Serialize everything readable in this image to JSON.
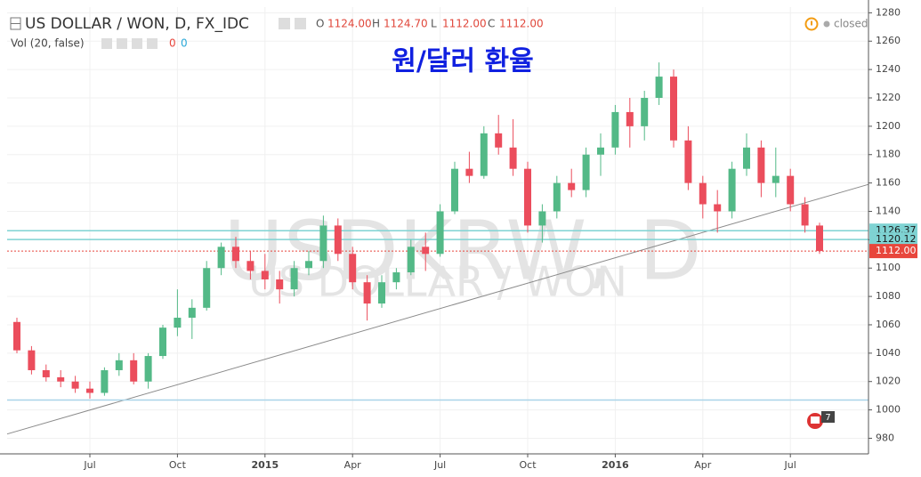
{
  "chart_data": {
    "type": "candlestick",
    "title": "원/달러 환율",
    "symbol": "US DOLLAR / WON, D, FX_IDC",
    "ohlc_legend": {
      "names": [
        "O",
        "H",
        "L",
        "C"
      ],
      "values": [
        1124,
        1124.7,
        1112,
        1112
      ],
      "value_labels": [
        "1124.00",
        "1124.70",
        "1112.00",
        "1112.00"
      ]
    },
    "volume_legend": {
      "name": "Vol (20, false)",
      "values": [
        0,
        0
      ]
    },
    "status": "closed",
    "watermark": {
      "symbol": "USDKRW, D",
      "description": "US DOLLAR / WON"
    },
    "badge": "7",
    "categories": [
      null,
      null,
      null,
      null,
      null,
      "Jul",
      null,
      null,
      null,
      null,
      null,
      "Oct",
      null,
      null,
      null,
      null,
      null,
      "2015",
      null,
      null,
      null,
      null,
      null,
      "Apr",
      null,
      null,
      null,
      null,
      null,
      "Jul",
      null,
      null,
      null,
      null,
      null,
      "Oct",
      null,
      null,
      null,
      null,
      null,
      "2016",
      null,
      null,
      null,
      null,
      null,
      "Apr",
      null,
      null,
      null,
      null,
      null,
      "Jul",
      null,
      null
    ],
    "open": [
      1062,
      1042,
      1028,
      1023,
      1020,
      1015,
      1012,
      1028,
      1035,
      1020,
      1038,
      1058,
      1065,
      1072,
      1100,
      1115,
      1105,
      1098,
      1092,
      1085,
      1100,
      1105,
      1130,
      1110,
      1090,
      1075,
      1090,
      1097,
      1115,
      1110,
      1140,
      1170,
      1165,
      1195,
      1185,
      1170,
      1130,
      1140,
      1160,
      1155,
      1180,
      1185,
      1210,
      1200,
      1220,
      1235,
      1190,
      1160,
      1145,
      1140,
      1170,
      1185,
      1160,
      1165,
      1145,
      1130
    ],
    "high": [
      1065,
      1045,
      1032,
      1028,
      1024,
      1020,
      1030,
      1040,
      1040,
      1040,
      1060,
      1085,
      1078,
      1105,
      1118,
      1122,
      1112,
      1110,
      1098,
      1105,
      1112,
      1137,
      1135,
      1115,
      1095,
      1095,
      1100,
      1120,
      1125,
      1145,
      1175,
      1182,
      1200,
      1208,
      1205,
      1175,
      1145,
      1165,
      1170,
      1185,
      1195,
      1215,
      1220,
      1225,
      1245,
      1240,
      1200,
      1165,
      1155,
      1175,
      1195,
      1190,
      1185,
      1170,
      1150,
      1132
    ],
    "low": [
      1040,
      1025,
      1020,
      1016,
      1012,
      1008,
      1010,
      1024,
      1018,
      1015,
      1036,
      1052,
      1050,
      1070,
      1095,
      1100,
      1092,
      1085,
      1075,
      1080,
      1095,
      1100,
      1105,
      1085,
      1063,
      1072,
      1085,
      1095,
      1098,
      1108,
      1138,
      1160,
      1163,
      1180,
      1165,
      1125,
      1118,
      1135,
      1150,
      1150,
      1165,
      1180,
      1185,
      1190,
      1215,
      1185,
      1155,
      1135,
      1125,
      1135,
      1165,
      1150,
      1150,
      1140,
      1125,
      1110
    ],
    "close": [
      1042,
      1028,
      1023,
      1020,
      1015,
      1012,
      1028,
      1035,
      1020,
      1038,
      1058,
      1065,
      1072,
      1100,
      1115,
      1105,
      1098,
      1092,
      1085,
      1100,
      1105,
      1130,
      1110,
      1090,
      1075,
      1090,
      1097,
      1115,
      1110,
      1140,
      1170,
      1165,
      1195,
      1185,
      1170,
      1130,
      1140,
      1160,
      1155,
      1180,
      1185,
      1210,
      1200,
      1220,
      1235,
      1190,
      1160,
      1145,
      1140,
      1170,
      1185,
      1160,
      1165,
      1145,
      1130,
      1112
    ],
    "up_color": "#53b987",
    "down_color": "#eb4d5c",
    "ylim": [
      969,
      1284
    ],
    "yticks": [
      980,
      1000,
      1020,
      1040,
      1060,
      1080,
      1100,
      1120,
      1140,
      1160,
      1180,
      1200,
      1220,
      1240,
      1260,
      1280
    ],
    "grid": true,
    "hlines": [
      {
        "value": 1126.37,
        "color": "#7fd3d3",
        "tag": true,
        "tag_text_color": "#1a1a1a"
      },
      {
        "value": 1120.12,
        "color": "#7fd3d3",
        "tag": true,
        "tag_text_color": "#1a1a1a"
      },
      {
        "value": 1112,
        "label": "1112.00",
        "color": "#e8463c",
        "tag": true,
        "dashed": true,
        "tag_text_color": "#ffffff"
      },
      {
        "value": 1007,
        "color": "#a9d4e8",
        "tag": false
      }
    ],
    "trendline": {
      "start": 983,
      "end": 1159,
      "color": "#8a8a8a"
    }
  }
}
